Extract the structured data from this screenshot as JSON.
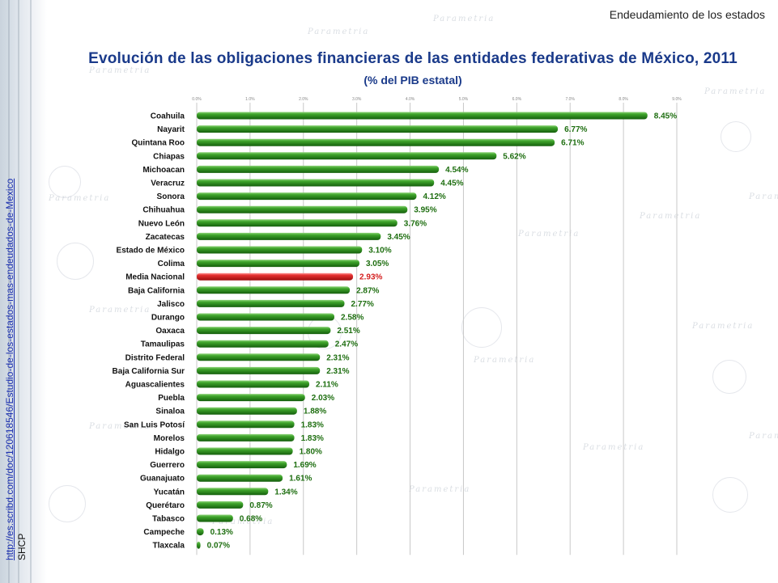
{
  "section_title": "Endeudamiento de los estados",
  "source": {
    "url": "http://es.scribd.com/doc/120618546/Estudio-de-los-estados-mas-endeudados-de-Mexico",
    "label": "SHCP"
  },
  "watermark_text": "Parametria",
  "colors": {
    "bar": "#1e7a14",
    "highlight_bar": "#d41e1e",
    "value_label": "#1e6e10",
    "highlight_label": "#d41e1e",
    "title": "#1a3a8a"
  },
  "chart_data": {
    "type": "bar",
    "orientation": "horizontal",
    "title": "Evolución de las obligaciones financieras de las entidades federativas de México, 2011",
    "subtitle": "(% del PIB estatal)",
    "xlim": [
      0,
      9
    ],
    "ticks": [
      "0.0%",
      "1.0%",
      "2.0%",
      "3.0%",
      "4.0%",
      "5.0%",
      "6.0%",
      "7.0%",
      "8.0%",
      "9.0%"
    ],
    "grid": true,
    "highlight": "Media Nacional",
    "categories": [
      "Coahuila",
      "Nayarit",
      "Quintana Roo",
      "Chiapas",
      "Michoacan",
      "Veracruz",
      "Sonora",
      "Chihuahua",
      "Nuevo León",
      "Zacatecas",
      "Estado de México",
      "Colima",
      "Media Nacional",
      "Baja California",
      "Jalisco",
      "Durango",
      "Oaxaca",
      "Tamaulipas",
      "Distrito Federal",
      "Baja California Sur",
      "Aguascalientes",
      "Puebla",
      "Sinaloa",
      "San Luis Potosí",
      "Morelos",
      "Hidalgo",
      "Guerrero",
      "Guanajuato",
      "Yucatán",
      "Querétaro",
      "Tabasco",
      "Campeche",
      "Tlaxcala"
    ],
    "values": [
      8.45,
      6.77,
      6.71,
      5.62,
      4.54,
      4.45,
      4.12,
      3.95,
      3.76,
      3.45,
      3.1,
      3.05,
      2.93,
      2.87,
      2.77,
      2.58,
      2.51,
      2.47,
      2.31,
      2.31,
      2.11,
      2.03,
      1.88,
      1.83,
      1.83,
      1.8,
      1.69,
      1.61,
      1.34,
      0.87,
      0.68,
      0.13,
      0.07
    ],
    "value_labels": [
      "8.45%",
      "6.77%",
      "6.71%",
      "5.62%",
      "4.54%",
      "4.45%",
      "4.12%",
      "3.95%",
      "3.76%",
      "3.45%",
      "3.10%",
      "3.05%",
      "2.93%",
      "2.87%",
      "2.77%",
      "2.58%",
      "2.51%",
      "2.47%",
      "2.31%",
      "2.31%",
      "2.11%",
      "2.03%",
      "1.88%",
      "1.83%",
      "1.83%",
      "1.80%",
      "1.69%",
      "1.61%",
      "1.34%",
      "0.87%",
      "0.68%",
      "0.13%",
      "0.07%"
    ]
  }
}
